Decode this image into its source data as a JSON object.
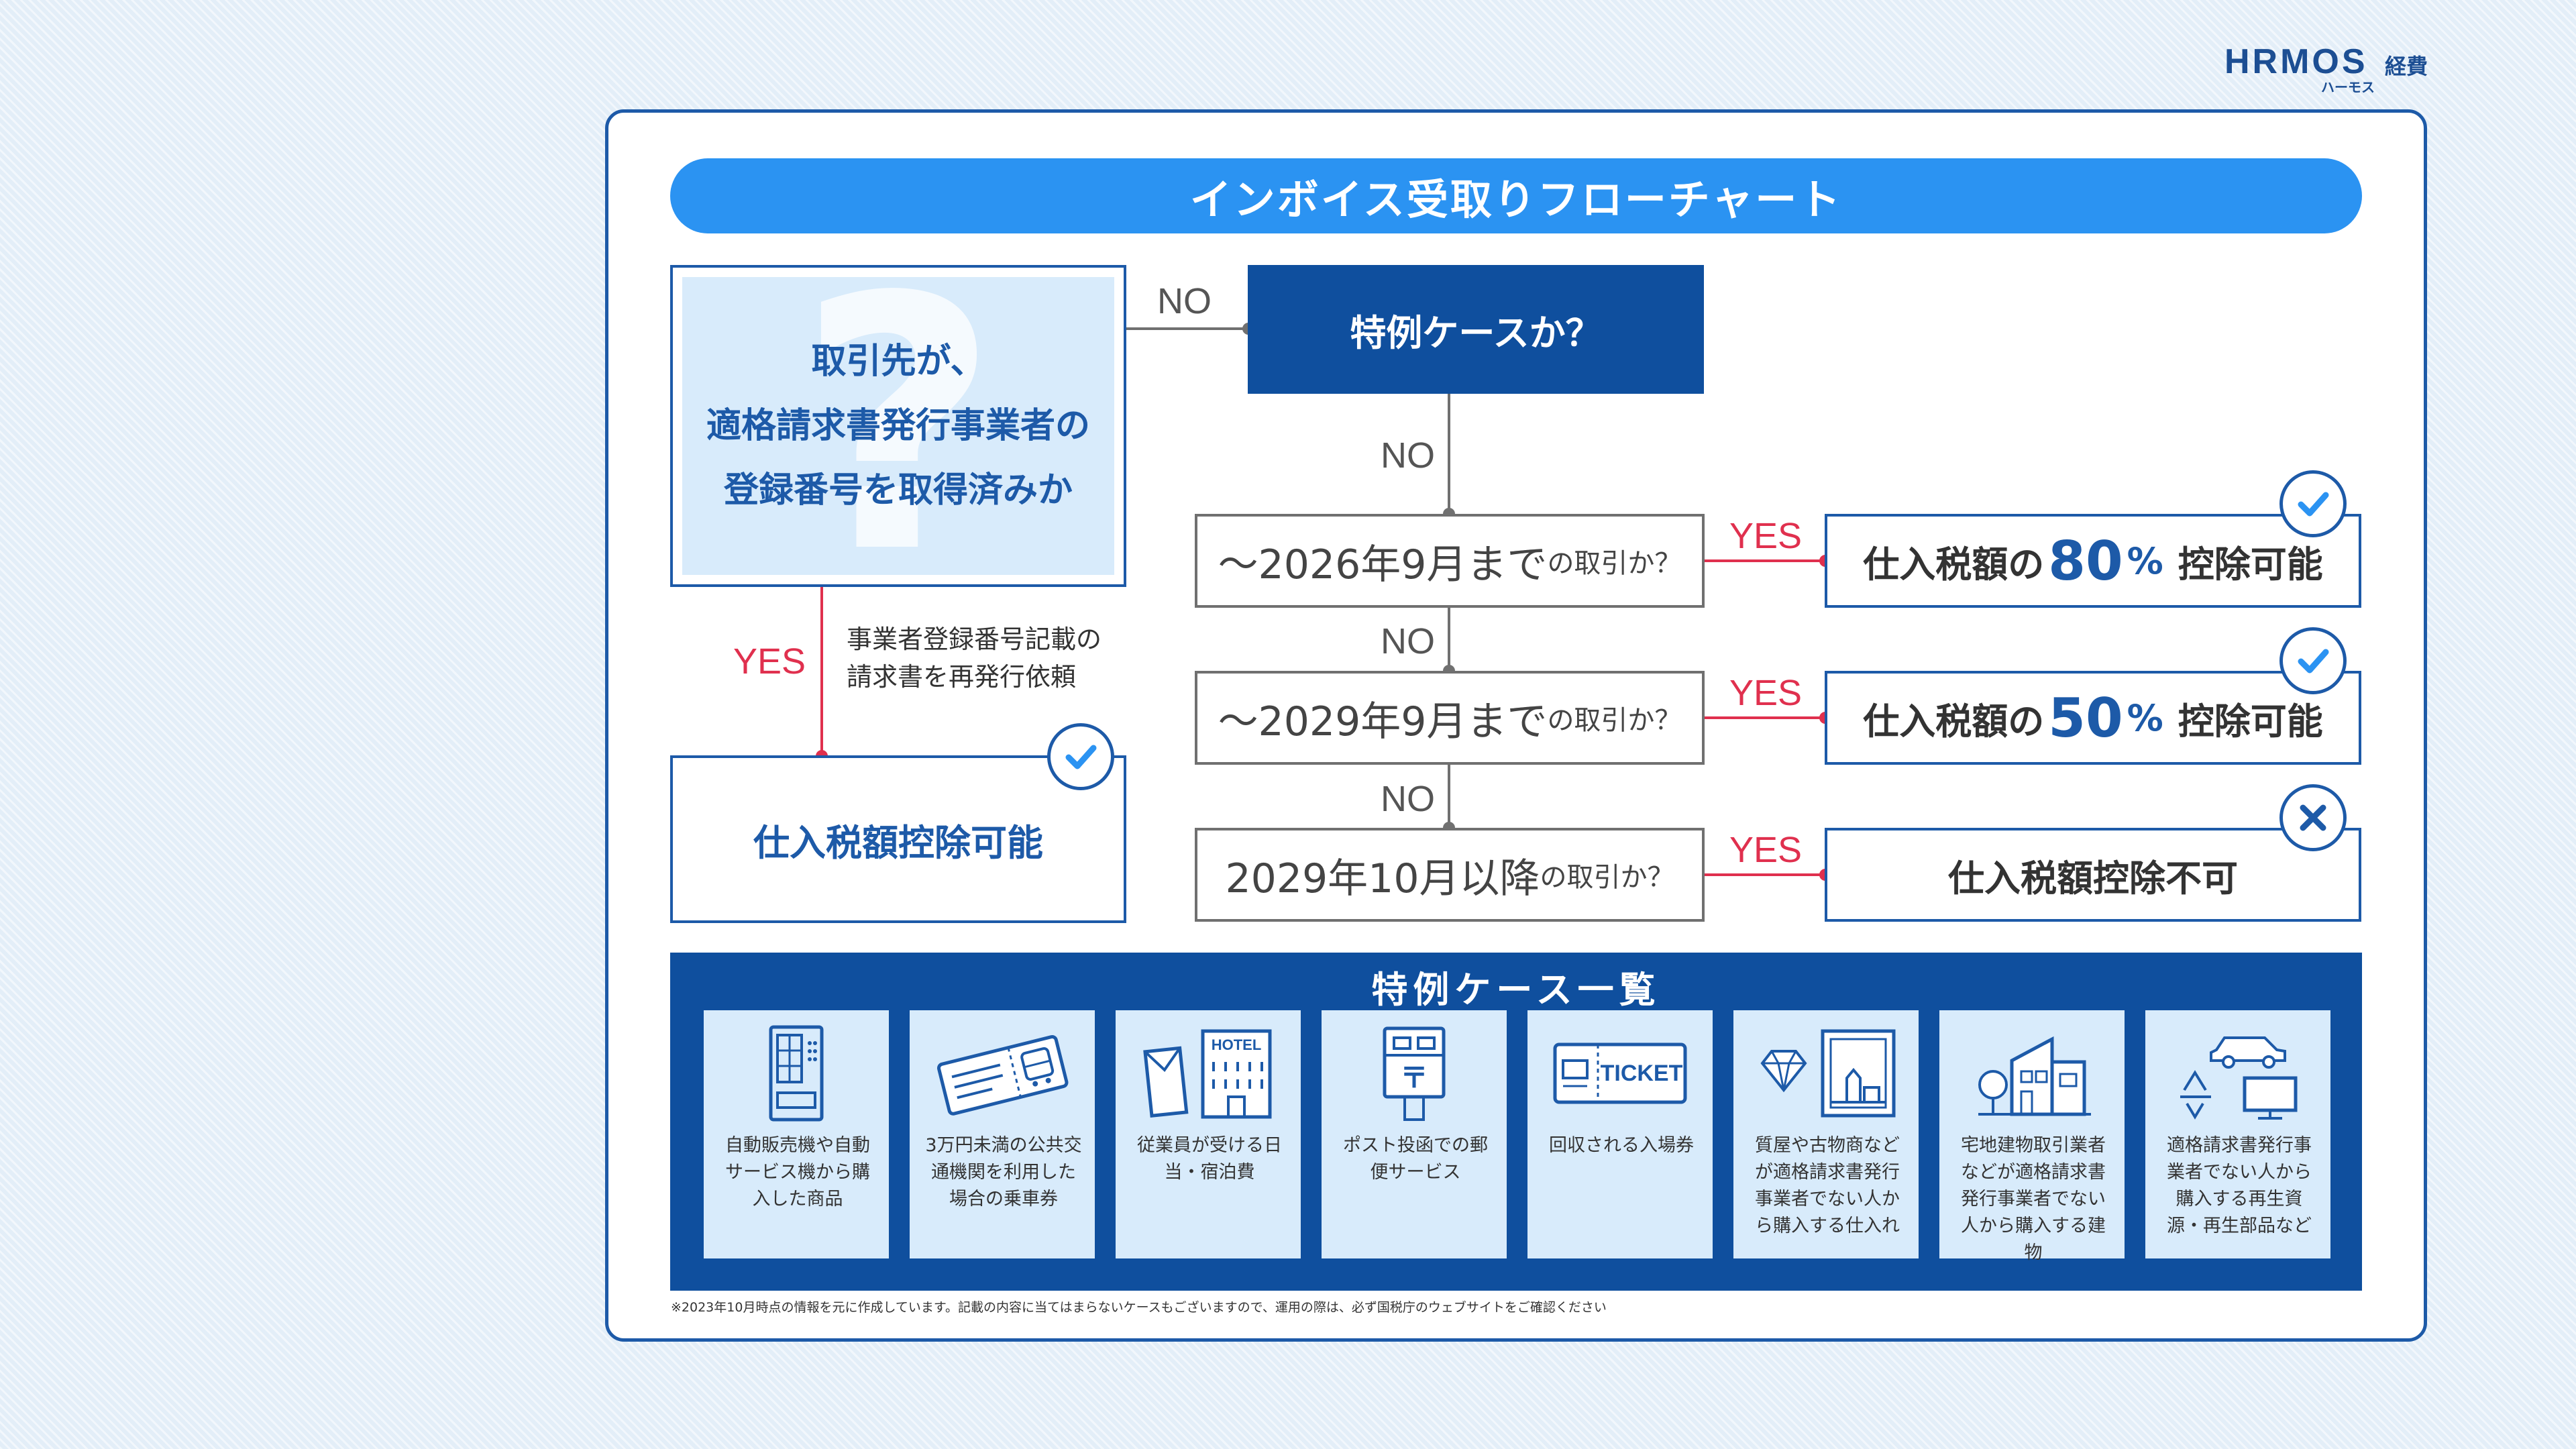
{
  "brand": {
    "logo": "HRMOS",
    "sub": "経費",
    "kana": "ハーモス",
    "color": "#1c4e93"
  },
  "title": "インボイス受取りフローチャート",
  "question": {
    "lines": [
      "取引先が、",
      "適格請求書発行事業者の",
      "登録番号を取得済みか"
    ],
    "watermark": "?"
  },
  "labels": {
    "no": "NO",
    "yes": "YES"
  },
  "reissue_note": [
    "事業者登録番号記載の",
    "請求書を再発行依頼"
  ],
  "left_result": "仕入税額控除可能",
  "special_case_question": "特例ケースか？",
  "rows": [
    {
      "question_main": "～2026年9月まで",
      "question_tail": "の取引か？",
      "result_pre": "仕入税額の",
      "result_pct": "80",
      "result_pct_sign": "%",
      "result_post": "控除可能",
      "badge": "check-icon"
    },
    {
      "question_main": "～2029年9月まで",
      "question_tail": "の取引か？",
      "result_pre": "仕入税額の",
      "result_pct": "50",
      "result_pct_sign": "%",
      "result_post": "控除可能",
      "badge": "check-icon"
    },
    {
      "question_main": "2029年10月以降",
      "question_tail": "の取引か？",
      "result_text": "仕入税額控除不可",
      "badge": "cross-icon"
    }
  ],
  "special_cases": {
    "title": "特例ケース一覧",
    "items": [
      {
        "icon": "vending-machine-icon",
        "text": "自動販売機や自動サービス機から購入した商品"
      },
      {
        "icon": "transit-ticket-icon",
        "text": "3万円未満の公共交通機関を利用した場合の乗車券"
      },
      {
        "icon": "hotel-icon",
        "text": "従業員が受ける日当・宿泊費",
        "icon_text": "HOTEL"
      },
      {
        "icon": "postbox-icon",
        "text": "ポスト投函での郵便サービス",
        "icon_text": "〒"
      },
      {
        "icon": "ticket-icon",
        "text": "回収される入場券",
        "icon_text": "TICKET"
      },
      {
        "icon": "pawnshop-icon",
        "text": "質屋や古物商などが適格請求書発行事業者でない人から購入する仕入れ"
      },
      {
        "icon": "building-icon",
        "text": "宅地建物取引業者などが適格請求書発行事業者でない人から購入する建物"
      },
      {
        "icon": "recycle-icon",
        "text": "適格請求書発行事業者でない人から購入する再生資源・再生部品など"
      }
    ]
  },
  "footnote": "※2023年10月時点の情報を元に作成しています。記載の内容に当てはまらないケースもございますので、運用の際は、必ず国税庁のウェブサイトをご確認ください",
  "colors": {
    "primary": "#1d5aa8",
    "accent": "#2b93f2",
    "dark": "#0f4f9e",
    "yes": "#e0304e",
    "neutral": "#707070",
    "light": "#d8ebfb"
  }
}
